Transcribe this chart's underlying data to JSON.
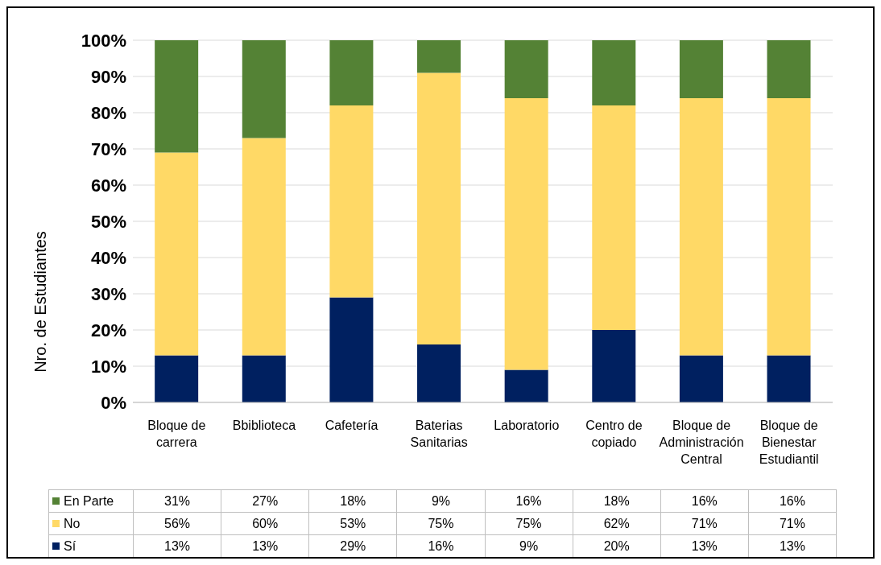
{
  "chart_data": {
    "type": "bar",
    "stacked": true,
    "ylabel": "Nro. de Estudiantes",
    "categories": [
      "Bloque de carrera",
      "Bbiblioteca",
      "Cafetería",
      "Baterias Sanitarias",
      "Laboratorio",
      "Centro de copiado",
      "Bloque de Administración Central",
      "Bloque de Bienestar Estudiantil"
    ],
    "series": [
      {
        "name": "Sí",
        "color": "#002060",
        "values": [
          13,
          13,
          29,
          16,
          9,
          20,
          13,
          13
        ],
        "value_labels": [
          "13%",
          "13%",
          "29%",
          "16%",
          "9%",
          "20%",
          "13%",
          "13%"
        ]
      },
      {
        "name": "No",
        "color": "#ffd966",
        "values": [
          56,
          60,
          53,
          75,
          75,
          62,
          71,
          71
        ],
        "value_labels": [
          "56%",
          "60%",
          "53%",
          "75%",
          "75%",
          "62%",
          "71%",
          "71%"
        ]
      },
      {
        "name": "En Parte",
        "color": "#548235",
        "values": [
          31,
          27,
          18,
          9,
          16,
          18,
          16,
          16
        ],
        "value_labels": [
          "31%",
          "27%",
          "18%",
          "9%",
          "16%",
          "18%",
          "16%",
          "16%"
        ]
      }
    ],
    "ylim": [
      0,
      100
    ],
    "yticks": [
      {
        "value": 0,
        "label": "0%"
      },
      {
        "value": 10,
        "label": "10%"
      },
      {
        "value": 20,
        "label": "20%"
      },
      {
        "value": 30,
        "label": "30%"
      },
      {
        "value": 40,
        "label": "40%"
      },
      {
        "value": 50,
        "label": "50%"
      },
      {
        "value": 60,
        "label": "60%"
      },
      {
        "value": 70,
        "label": "70%"
      },
      {
        "value": 80,
        "label": "80%"
      },
      {
        "value": 90,
        "label": "90%"
      },
      {
        "value": 100,
        "label": "100%"
      }
    ],
    "grid": "y",
    "legend": "bottom"
  }
}
